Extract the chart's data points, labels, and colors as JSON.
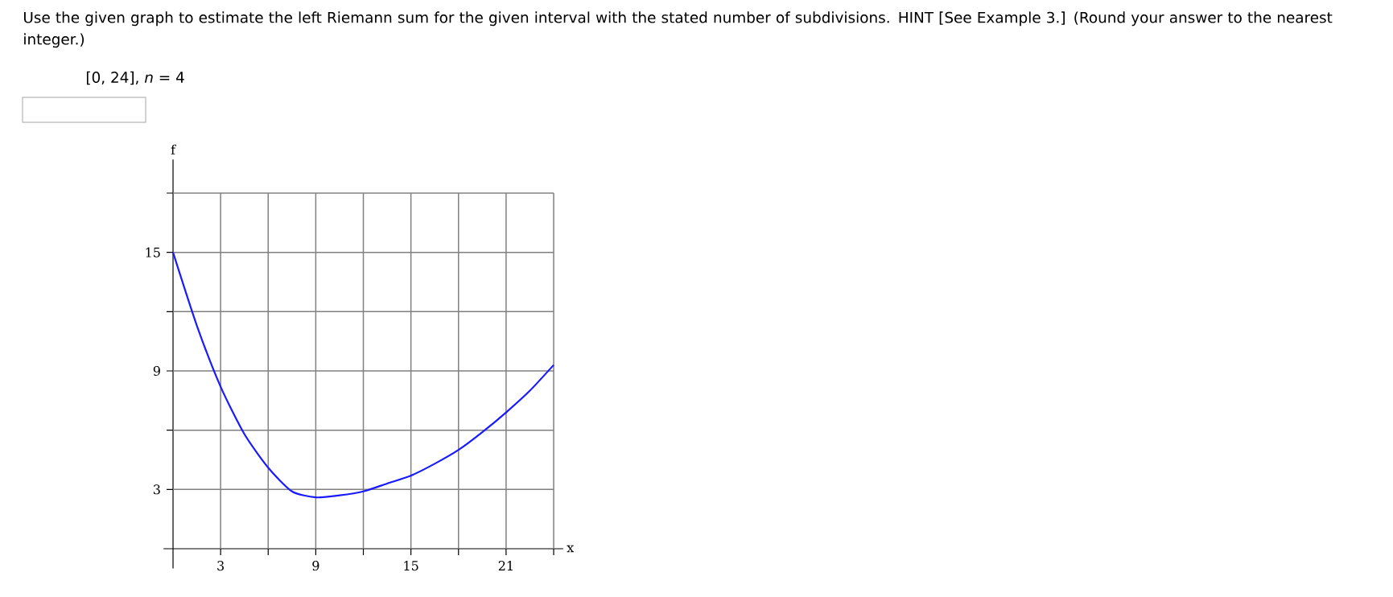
{
  "chart_data": {
    "type": "line",
    "title": "Use the given graph to estimate the left Riemann sum for the given interval with the stated number of subdivisions. HINT [See Example 3.] (Round your answer to the nearest integer.)",
    "subtitle": "[0, 24], *n* = 4",
    "xlabel": "x",
    "ylabel": "f",
    "x": [
      0,
      1.5,
      3,
      4.5,
      6,
      7.5,
      9,
      10.5,
      12,
      13.5,
      15,
      16.5,
      18,
      19.5,
      21,
      22.5,
      24
    ],
    "series": [
      {
        "color": "#1a1aff",
        "values": [
          15,
          11.3,
          8.2,
          5.8,
          4.1,
          2.9,
          2.6,
          2.7,
          2.9,
          3.3,
          3.7,
          4.3,
          5.0,
          5.9,
          6.9,
          8.0,
          9.3
        ]
      }
    ],
    "xlim": [
      -0.6,
      24.6
    ],
    "ylim": [
      -1,
      19.7
    ],
    "xticks": [
      3,
      {
        "value": 6,
        "label": null
      },
      9,
      {
        "value": 12,
        "label": null
      },
      15,
      {
        "value": 18,
        "label": null
      },
      21,
      {
        "value": 24,
        "label": null
      }
    ],
    "yticks": [
      3,
      {
        "value": 6,
        "label": null
      },
      9,
      {
        "value": 12,
        "label": null
      },
      15,
      {
        "value": 18,
        "label": null
      }
    ],
    "grid": true,
    "marker": "none",
    "line_style": "solid"
  }
}
